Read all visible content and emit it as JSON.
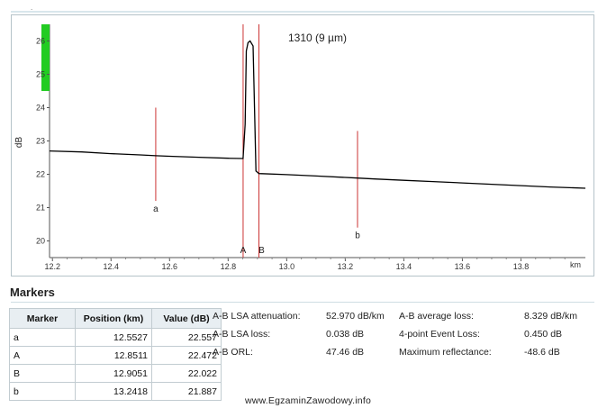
{
  "chart_data": {
    "type": "line",
    "title": "1310 (9 µm)",
    "ylabel": "dB",
    "xlabel": "km",
    "xlim": [
      12.19,
      14.02
    ],
    "ylim": [
      19.5,
      26.5
    ],
    "xticks": [
      12.2,
      12.4,
      12.6,
      12.8,
      13.0,
      13.2,
      13.4,
      13.6,
      13.8
    ],
    "xtick_labels": [
      "12.2",
      "12.4",
      "12.6",
      "12.8",
      "13.0",
      "13.2",
      "13.4",
      "13.6",
      "13.8"
    ],
    "yticks": [
      20,
      21,
      22,
      23,
      24,
      25,
      26
    ],
    "ytick_labels": [
      "20",
      "21",
      "22",
      "23",
      "24",
      "25",
      "26"
    ],
    "series": [
      {
        "color": "#000000",
        "x": [
          12.19,
          12.3,
          12.4,
          12.5,
          12.5527,
          12.6,
          12.7,
          12.8,
          12.8511,
          12.858,
          12.862,
          12.868,
          12.875,
          12.885,
          12.89,
          12.895,
          12.9051,
          13.0,
          13.1,
          13.2418,
          13.3,
          13.4,
          13.5,
          13.6,
          13.7,
          13.8,
          13.9,
          14.02
        ],
        "y": [
          22.7,
          22.67,
          22.62,
          22.58,
          22.557,
          22.54,
          22.51,
          22.48,
          22.472,
          23.5,
          25.7,
          25.95,
          26.0,
          25.85,
          24.0,
          22.1,
          22.022,
          21.99,
          21.95,
          21.887,
          21.86,
          21.82,
          21.78,
          21.74,
          21.7,
          21.66,
          21.62,
          21.58
        ]
      }
    ],
    "markers": [
      {
        "label": "a",
        "x": 12.5527,
        "y_top": 24.0,
        "y_bottom": 21.2,
        "color": "#cc3333"
      },
      {
        "label": "A",
        "x": 12.8511,
        "y_top": 26.5,
        "y_bottom": 19.5,
        "color": "#cc3333"
      },
      {
        "label": "B",
        "x": 12.9051,
        "y_top": 26.5,
        "y_bottom": 19.5,
        "color": "#cc3333"
      },
      {
        "label": "b",
        "x": 13.2418,
        "y_top": 23.3,
        "y_bottom": 20.4,
        "color": "#cc3333"
      }
    ],
    "grid": false,
    "indicator_color": "#22cc22"
  },
  "markers_section": {
    "title": "Markers",
    "columns": [
      "Marker",
      "Position (km)",
      "Value (dB)"
    ],
    "rows": [
      [
        "a",
        "12.5527",
        "22.557"
      ],
      [
        "A",
        "12.8511",
        "22.472"
      ],
      [
        "B",
        "12.9051",
        "22.022"
      ],
      [
        "b",
        "13.2418",
        "21.887"
      ]
    ]
  },
  "stats": [
    {
      "label": "A-B LSA attenuation:",
      "value": "52.970 dB/km"
    },
    {
      "label": "A-B LSA loss:",
      "value": "0.038 dB"
    },
    {
      "label": "A-B ORL:",
      "value": "47.46 dB"
    },
    {
      "label": "A-B average loss:",
      "value": "8.329 dB/km"
    },
    {
      "label": "4-point Event Loss:",
      "value": "0.450 dB"
    },
    {
      "label": "Maximum reflectance:",
      "value": "-48.6 dB"
    }
  ],
  "watermark": "www.EgzaminZawodowy.info"
}
